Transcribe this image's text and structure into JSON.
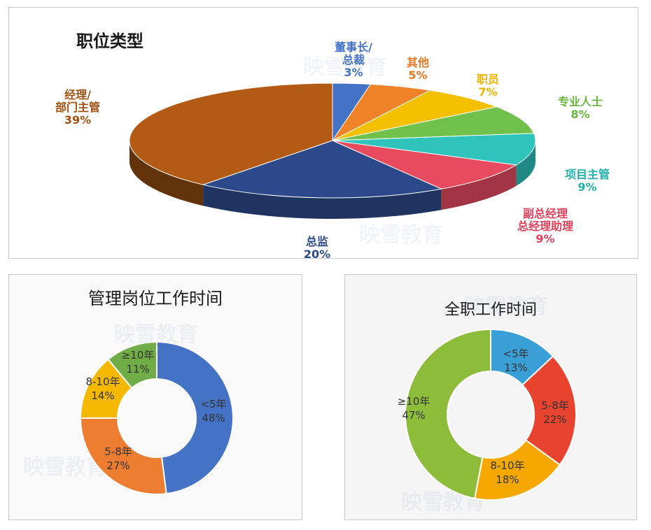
{
  "watermark": "映雪教育",
  "chart_data": [
    {
      "type": "pie",
      "title": "职位类型",
      "slices": [
        {
          "label": "董事长/总裁",
          "value": 3,
          "pct": "3%",
          "color": "#4472c4"
        },
        {
          "label": "其他",
          "value": 5,
          "pct": "5%",
          "color": "#f08228"
        },
        {
          "label": "职员",
          "value": 7,
          "pct": "7%",
          "color": "#f5c000"
        },
        {
          "label": "专业人士",
          "value": 8,
          "pct": "8%",
          "color": "#70c04c"
        },
        {
          "label": "项目主管",
          "value": 9,
          "pct": "9%",
          "color": "#2ec4bc"
        },
        {
          "label": "副总经理总经理助理",
          "value": 9,
          "pct": "9%",
          "color": "#e84a5f"
        },
        {
          "label": "总监",
          "value": 20,
          "pct": "20%",
          "color": "#2c4a8a"
        },
        {
          "label": "经理/部门主管",
          "value": 39,
          "pct": "39%",
          "color": "#b35a14"
        }
      ],
      "labels": [
        {
          "lines": [
            "董事长/",
            "总裁",
            "3%"
          ],
          "color": "#4472c4"
        },
        {
          "lines": [
            "其他",
            "5%"
          ],
          "color": "#e87722"
        },
        {
          "lines": [
            "职员",
            "7%"
          ],
          "color": "#f0b400"
        },
        {
          "lines": [
            "专业人士",
            "8%"
          ],
          "color": "#6ab83e"
        },
        {
          "lines": [
            "项目主管",
            "9%"
          ],
          "color": "#22b2aa"
        },
        {
          "lines": [
            "副总经理",
            "总经理助理",
            "9%"
          ],
          "color": "#e0405a"
        },
        {
          "lines": [
            "总监",
            "20%"
          ],
          "color": "#2c4a8a"
        },
        {
          "lines": [
            "经理/",
            "部门主管",
            "39%"
          ],
          "color": "#a0500f"
        }
      ]
    },
    {
      "type": "pie",
      "title": "管理岗位工作时间",
      "slices": [
        {
          "label": "<5年",
          "value": 48,
          "pct": "48%",
          "color": "#4472c4"
        },
        {
          "label": "5-8年",
          "value": 27,
          "pct": "27%",
          "color": "#ed7d31"
        },
        {
          "label": "8-10年",
          "value": 14,
          "pct": "14%",
          "color": "#f5b800"
        },
        {
          "label": "≥10年",
          "value": 11,
          "pct": "11%",
          "color": "#70ad47"
        }
      ]
    },
    {
      "type": "pie",
      "title": "全职工作时间",
      "slices": [
        {
          "label": "<5年",
          "value": 13,
          "pct": "13%",
          "color": "#3a9fd6"
        },
        {
          "label": "5-8年",
          "value": 22,
          "pct": "22%",
          "color": "#e8432e"
        },
        {
          "label": "8-10年",
          "value": 18,
          "pct": "18%",
          "color": "#f5a800"
        },
        {
          "label": "≥10年",
          "value": 47,
          "pct": "47%",
          "color": "#8cbc3a"
        }
      ]
    }
  ]
}
